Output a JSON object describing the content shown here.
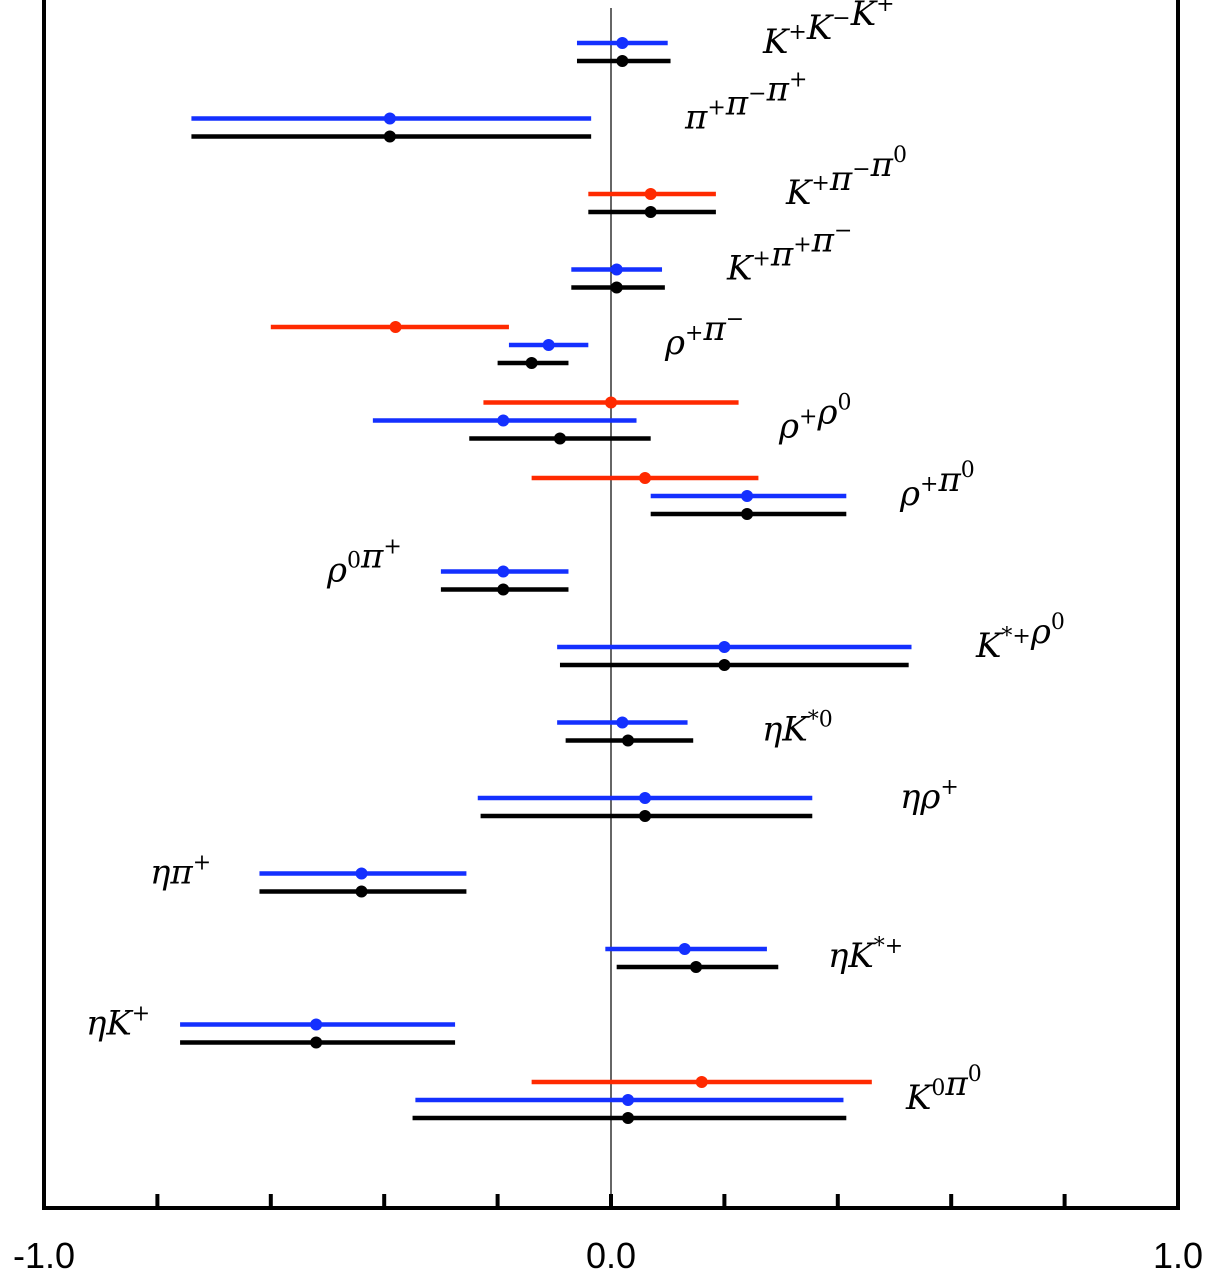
{
  "chart_data": {
    "type": "scatter",
    "title": "",
    "xlabel": "",
    "ylabel": "",
    "xlim": [
      -1.0,
      1.0
    ],
    "tick_labels": [
      "-1.0",
      "0.0",
      "1.0"
    ],
    "tick_positions": [
      -1.0,
      -0.8,
      -0.6,
      -0.4,
      -0.2,
      0.0,
      0.2,
      0.4,
      0.6,
      0.8,
      1.0
    ],
    "grid": false,
    "series_colors": {
      "red": "#ff2a00",
      "blue": "#1430ff",
      "black": "#000000"
    },
    "modes": [
      {
        "label": "K⁺K⁻K⁺",
        "main": "K",
        "parts": [
          [
            "K",
            "+"
          ],
          [
            "K",
            "−"
          ],
          [
            "K",
            "+"
          ]
        ],
        "points": [
          {
            "color": "blue",
            "value": 0.02,
            "low": -0.06,
            "high": 0.1
          },
          {
            "color": "black",
            "value": 0.02,
            "low": -0.06,
            "high": 0.105
          }
        ]
      },
      {
        "label": "π⁺π⁻π⁺",
        "parts": [
          [
            "π",
            "+"
          ],
          [
            "π",
            "−"
          ],
          [
            "π",
            "+"
          ]
        ],
        "points": [
          {
            "color": "blue",
            "value": -0.39,
            "low": -0.74,
            "high": -0.035
          },
          {
            "color": "black",
            "value": -0.39,
            "low": -0.74,
            "high": -0.035
          }
        ]
      },
      {
        "label": "K⁺π⁻π⁰",
        "parts": [
          [
            "K",
            "+"
          ],
          [
            "π",
            "−"
          ],
          [
            "π",
            "0"
          ]
        ],
        "points": [
          {
            "color": "red",
            "value": 0.07,
            "low": -0.04,
            "high": 0.185
          },
          {
            "color": "black",
            "value": 0.07,
            "low": -0.04,
            "high": 0.185
          }
        ]
      },
      {
        "label": "K⁺π⁺π⁻",
        "parts": [
          [
            "K",
            "+"
          ],
          [
            "π",
            "+"
          ],
          [
            "π",
            "−"
          ]
        ],
        "points": [
          {
            "color": "blue",
            "value": 0.01,
            "low": -0.07,
            "high": 0.09
          },
          {
            "color": "black",
            "value": 0.01,
            "low": -0.07,
            "high": 0.095
          }
        ]
      },
      {
        "label": "ρ⁺π⁻",
        "parts": [
          [
            "ρ",
            "+"
          ],
          [
            "π",
            "−"
          ]
        ],
        "points": [
          {
            "color": "red",
            "value": -0.38,
            "low": -0.6,
            "high": -0.18
          },
          {
            "color": "blue",
            "value": -0.11,
            "low": -0.18,
            "high": -0.04
          },
          {
            "color": "black",
            "value": -0.14,
            "low": -0.2,
            "high": -0.075
          }
        ]
      },
      {
        "label": "ρ⁺ρ⁰",
        "parts": [
          [
            "ρ",
            "+"
          ],
          [
            "ρ",
            "0"
          ]
        ],
        "points": [
          {
            "color": "red",
            "value": 0.0,
            "low": -0.225,
            "high": 0.225
          },
          {
            "color": "blue",
            "value": -0.19,
            "low": -0.42,
            "high": 0.045
          },
          {
            "color": "black",
            "value": -0.09,
            "low": -0.25,
            "high": 0.07
          }
        ]
      },
      {
        "label": "ρ⁺π⁰",
        "parts": [
          [
            "ρ",
            "+"
          ],
          [
            "π",
            "0"
          ]
        ],
        "points": [
          {
            "color": "red",
            "value": 0.06,
            "low": -0.14,
            "high": 0.26
          },
          {
            "color": "blue",
            "value": 0.24,
            "low": 0.07,
            "high": 0.415
          },
          {
            "color": "black",
            "value": 0.24,
            "low": 0.07,
            "high": 0.415
          }
        ]
      },
      {
        "label": "ρ⁰π⁺",
        "parts": [
          [
            "ρ",
            "0"
          ],
          [
            "π",
            "+"
          ]
        ],
        "points": [
          {
            "color": "blue",
            "value": -0.19,
            "low": -0.3,
            "high": -0.075
          },
          {
            "color": "black",
            "value": -0.19,
            "low": -0.3,
            "high": -0.075
          }
        ]
      },
      {
        "label": "K*⁺ρ⁰",
        "parts": [
          [
            "K",
            "*+"
          ],
          [
            "ρ",
            "0"
          ]
        ],
        "points": [
          {
            "color": "blue",
            "value": 0.2,
            "low": -0.095,
            "high": 0.53
          },
          {
            "color": "black",
            "value": 0.2,
            "low": -0.09,
            "high": 0.525
          }
        ]
      },
      {
        "label": "ηK*⁰",
        "parts": [
          [
            "η",
            ""
          ],
          [
            "K",
            "*0"
          ]
        ],
        "points": [
          {
            "color": "blue",
            "value": 0.02,
            "low": -0.095,
            "high": 0.135
          },
          {
            "color": "black",
            "value": 0.03,
            "low": -0.08,
            "high": 0.145
          }
        ]
      },
      {
        "label": "ηρ⁺",
        "parts": [
          [
            "η",
            ""
          ],
          [
            "ρ",
            "+"
          ]
        ],
        "points": [
          {
            "color": "blue",
            "value": 0.06,
            "low": -0.235,
            "high": 0.355
          },
          {
            "color": "black",
            "value": 0.06,
            "low": -0.23,
            "high": 0.355
          }
        ]
      },
      {
        "label": "ηπ⁺",
        "parts": [
          [
            "η",
            ""
          ],
          [
            "π",
            "+"
          ]
        ],
        "points": [
          {
            "color": "blue",
            "value": -0.44,
            "low": -0.62,
            "high": -0.255
          },
          {
            "color": "black",
            "value": -0.44,
            "low": -0.62,
            "high": -0.255
          }
        ]
      },
      {
        "label": "ηK*⁺",
        "parts": [
          [
            "η",
            ""
          ],
          [
            "K",
            "*+"
          ]
        ],
        "points": [
          {
            "color": "blue",
            "value": 0.13,
            "low": -0.01,
            "high": 0.275
          },
          {
            "color": "black",
            "value": 0.15,
            "low": 0.01,
            "high": 0.295
          }
        ]
      },
      {
        "label": "ηK⁺",
        "parts": [
          [
            "η",
            ""
          ],
          [
            "K",
            "+"
          ]
        ],
        "points": [
          {
            "color": "blue",
            "value": -0.52,
            "low": -0.76,
            "high": -0.275
          },
          {
            "color": "black",
            "value": -0.52,
            "low": -0.76,
            "high": -0.275
          }
        ]
      },
      {
        "label": "K⁰π⁰",
        "parts": [
          [
            "K",
            "0"
          ],
          [
            "π",
            "0"
          ]
        ],
        "points": [
          {
            "color": "red",
            "value": 0.16,
            "low": -0.14,
            "high": 0.46
          },
          {
            "color": "blue",
            "value": 0.03,
            "low": -0.345,
            "high": 0.41
          },
          {
            "color": "black",
            "value": 0.03,
            "low": -0.35,
            "high": 0.415
          }
        ]
      }
    ]
  }
}
